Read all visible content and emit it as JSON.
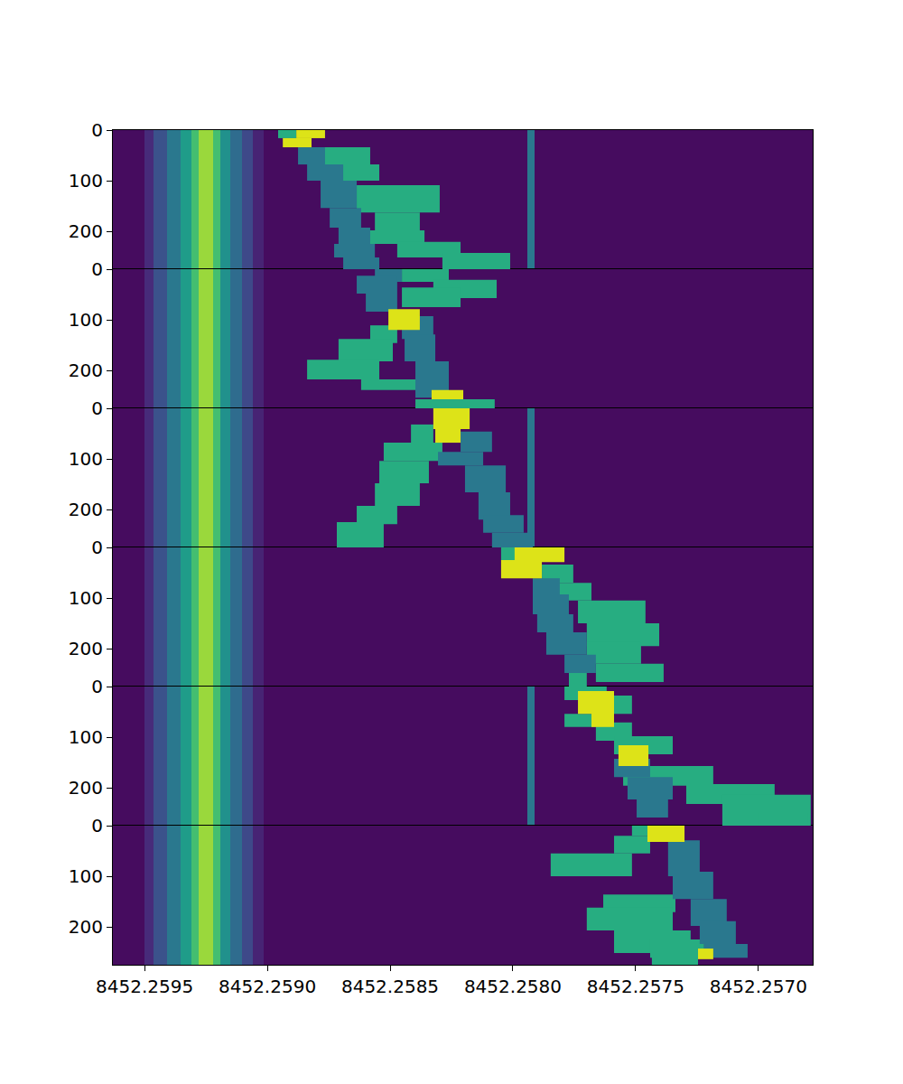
{
  "chart_data": {
    "type": "heatmap",
    "color": "Viridis",
    "colors": [
      "#2a788e",
      "#27ad81",
      "#dde318"
    ],
    "zlim": [
      0,
      1
    ],
    "xlim": [
      8452.259629,
      8452.256779
    ],
    "xticks": [
      8452.2595,
      {
        "value": 8452.259,
        "label": "8452.2590"
      },
      8452.2585,
      {
        "value": 8452.258,
        "label": "8452.2580"
      },
      8452.2575,
      {
        "value": 8452.257,
        "label": "8452.2570"
      }
    ],
    "ylim": [
      275,
      0
    ],
    "yticks": [
      0,
      100,
      200
    ],
    "panels": [
      {
        "profile": {
          "f": [
            8452.259629,
            8452.2595,
            8452.259463,
            8452.259408,
            8452.259353,
            8452.259309,
            8452.259279,
            8452.259221,
            8452.259191,
            8452.259151,
            8452.259103,
            8452.259059,
            8452.259015,
            8452.257941,
            8452.257912,
            8452.256779
          ],
          "z": [
            0.03,
            0.12,
            0.25,
            0.4,
            0.55,
            0.7,
            0.85,
            0.7,
            0.5,
            0.35,
            0.22,
            0.1,
            0.03,
            0.4,
            0.03
          ]
        },
        "tracks": [
          [
            0,
            16,
            8452.258956,
            8452.258882,
            1
          ],
          [
            0,
            16,
            8452.258882,
            8452.258765,
            2
          ],
          [
            16,
            34,
            8452.258937,
            8452.25882,
            2
          ],
          [
            34,
            68,
            8452.258875,
            8452.258765,
            0
          ],
          [
            34,
            68,
            8452.25882,
            8452.258581,
            1
          ],
          [
            68,
            100,
            8452.258838,
            8452.258691,
            0
          ],
          [
            68,
            100,
            8452.258728,
            8452.258544,
            1
          ],
          [
            100,
            154,
            8452.258783,
            8452.258636,
            0
          ],
          [
            109,
            163,
            8452.258636,
            8452.258298,
            1
          ],
          [
            154,
            193,
            8452.258746,
            8452.258618,
            0
          ],
          [
            163,
            198,
            8452.258562,
            8452.258379,
            1
          ],
          [
            193,
            225,
            8452.25871,
            8452.258581,
            0
          ],
          [
            198,
            225,
            8452.258636,
            8452.25836,
            1
          ],
          [
            225,
            252,
            8452.258728,
            8452.258562,
            0
          ],
          [
            221,
            252,
            8452.258471,
            8452.258213,
            1
          ],
          [
            252,
            275,
            8452.258691,
            8452.258544,
            0
          ],
          [
            243,
            275,
            8452.258287,
            8452.258011,
            1
          ]
        ]
      },
      {
        "profile": {
          "f": [
            8452.259629,
            8452.2595,
            8452.259463,
            8452.259408,
            8452.259353,
            8452.259309,
            8452.259279,
            8452.259221,
            8452.259191,
            8452.259151,
            8452.259103,
            8452.259059,
            8452.259015,
            8452.256779
          ],
          "z": [
            0.03,
            0.12,
            0.25,
            0.4,
            0.55,
            0.7,
            0.85,
            0.7,
            0.5,
            0.35,
            0.22,
            0.1,
            0.03
          ]
        },
        "tracks": [
          [
            0,
            25,
            8452.258562,
            8452.258452,
            0
          ],
          [
            0,
            25,
            8452.258452,
            8452.258261,
            1
          ],
          [
            13,
            48,
            8452.258636,
            8452.258471,
            0
          ],
          [
            21,
            57,
            8452.258324,
            8452.258066,
            1
          ],
          [
            48,
            84,
            8452.258599,
            8452.258471,
            0
          ],
          [
            36,
            75,
            8452.258452,
            8452.258213,
            1
          ],
          [
            79,
            120,
            8452.258507,
            8452.258379,
            2
          ],
          [
            93,
            138,
            8452.258452,
            8452.258324,
            0
          ],
          [
            111,
            146,
            8452.258581,
            8452.258471,
            1
          ],
          [
            138,
            182,
            8452.25871,
            8452.258489,
            1
          ],
          [
            129,
            182,
            8452.258441,
            8452.258316,
            0
          ],
          [
            179,
            218,
            8452.258838,
            8452.258544,
            1
          ],
          [
            182,
            227,
            8452.258397,
            8452.258261,
            0
          ],
          [
            218,
            239,
            8452.258618,
            8452.258324,
            1
          ],
          [
            227,
            254,
            8452.258397,
            8452.258261,
            0
          ],
          [
            239,
            257,
            8452.258331,
            8452.258202,
            2
          ],
          [
            257,
            275,
            8452.258397,
            8452.258074,
            1
          ]
        ]
      },
      {
        "profile": {
          "f": [
            8452.259629,
            8452.2595,
            8452.259463,
            8452.259408,
            8452.259353,
            8452.259309,
            8452.259279,
            8452.259221,
            8452.259191,
            8452.259151,
            8452.259103,
            8452.259059,
            8452.259015,
            8452.257941,
            8452.257912,
            8452.256779
          ],
          "z": [
            0.03,
            0.12,
            0.25,
            0.4,
            0.55,
            0.7,
            0.85,
            0.7,
            0.5,
            0.35,
            0.22,
            0.1,
            0.03,
            0.4,
            0.03
          ]
        },
        "tracks": [
          [
            0,
            41,
            8452.258324,
            8452.258176,
            2
          ],
          [
            41,
            68,
            8452.258316,
            8452.258213,
            2
          ],
          [
            32,
            86,
            8452.258415,
            8452.258324,
            1
          ],
          [
            46,
            86,
            8452.258213,
            8452.258085,
            0
          ],
          [
            68,
            104,
            8452.258526,
            8452.258287,
            1
          ],
          [
            86,
            113,
            8452.258305,
            8452.258121,
            0
          ],
          [
            104,
            148,
            8452.258544,
            8452.258342,
            1
          ],
          [
            113,
            166,
            8452.258195,
            8452.258029,
            0
          ],
          [
            148,
            193,
            8452.258562,
            8452.258379,
            1
          ],
          [
            166,
            220,
            8452.25814,
            8452.258011,
            0
          ],
          [
            193,
            229,
            8452.258636,
            8452.258471,
            1
          ],
          [
            211,
            246,
            8452.258121,
            8452.257956,
            0
          ],
          [
            225,
            275,
            8452.258717,
            8452.258526,
            1
          ],
          [
            246,
            275,
            8452.258085,
            8452.257919,
            0
          ]
        ]
      },
      {
        "profile": {
          "f": [
            8452.259629,
            8452.2595,
            8452.259463,
            8452.259408,
            8452.259353,
            8452.259309,
            8452.259279,
            8452.259221,
            8452.259191,
            8452.259151,
            8452.259103,
            8452.259059,
            8452.259015,
            8452.256779
          ],
          "z": [
            0.03,
            0.12,
            0.25,
            0.4,
            0.55,
            0.7,
            0.85,
            0.7,
            0.5,
            0.35,
            0.22,
            0.1,
            0.03
          ]
        },
        "tracks": [
          [
            0,
            25,
            8452.258048,
            8452.257864,
            1
          ],
          [
            0,
            29,
            8452.257993,
            8452.25779,
            2
          ],
          [
            25,
            61,
            8452.258048,
            8452.257882,
            2
          ],
          [
            34,
            70,
            8452.257882,
            8452.257754,
            1
          ],
          [
            61,
            96,
            8452.257919,
            8452.257809,
            0
          ],
          [
            70,
            105,
            8452.257846,
            8452.25768,
            1
          ],
          [
            93,
            132,
            8452.257919,
            8452.257772,
            0
          ],
          [
            105,
            150,
            8452.257735,
            8452.25746,
            1
          ],
          [
            132,
            168,
            8452.257901,
            8452.257754,
            0
          ],
          [
            150,
            195,
            8452.257699,
            8452.257404,
            1
          ],
          [
            168,
            212,
            8452.257864,
            8452.257699,
            0
          ],
          [
            186,
            230,
            8452.257699,
            8452.257478,
            1
          ],
          [
            212,
            248,
            8452.25779,
            8452.257662,
            0
          ],
          [
            230,
            266,
            8452.257662,
            8452.257386,
            1
          ],
          [
            248,
            275,
            8452.257772,
            8452.257699,
            1
          ]
        ]
      },
      {
        "profile": {
          "f": [
            8452.259629,
            8452.2595,
            8452.259463,
            8452.259408,
            8452.259353,
            8452.259309,
            8452.259279,
            8452.259221,
            8452.259191,
            8452.259151,
            8452.259103,
            8452.259059,
            8452.259015,
            8452.257941,
            8452.257912,
            8452.256779
          ],
          "z": [
            0.03,
            0.12,
            0.25,
            0.4,
            0.55,
            0.7,
            0.85,
            0.7,
            0.5,
            0.35,
            0.22,
            0.1,
            0.03,
            0.4,
            0.03
          ]
        },
        "tracks": [
          [
            0,
            27,
            8452.25779,
            8452.257618,
            1
          ],
          [
            9,
            54,
            8452.257735,
            8452.257588,
            2
          ],
          [
            18,
            54,
            8452.257643,
            8452.257515,
            1
          ],
          [
            54,
            80,
            8452.25779,
            8452.257662,
            1
          ],
          [
            50,
            80,
            8452.25768,
            8452.257588,
            2
          ],
          [
            71,
            107,
            8452.257662,
            8452.257515,
            1
          ],
          [
            98,
            134,
            8452.257588,
            8452.257349,
            1
          ],
          [
            116,
            157,
            8452.25757,
            8452.257448,
            2
          ],
          [
            143,
            179,
            8452.257588,
            8452.257441,
            0
          ],
          [
            157,
            196,
            8452.257551,
            8452.257184,
            1
          ],
          [
            179,
            223,
            8452.257533,
            8452.257349,
            0
          ],
          [
            193,
            232,
            8452.257294,
            8452.256934,
            1
          ],
          [
            223,
            259,
            8452.257496,
            8452.257368,
            0
          ],
          [
            214,
            275,
            8452.257147,
            8452.256787,
            1
          ],
          [
            250,
            275,
            8452.257,
            8452.256798,
            1
          ]
        ]
      },
      {
        "profile": {
          "f": [
            8452.259629,
            8452.2595,
            8452.259463,
            8452.259408,
            8452.259353,
            8452.259309,
            8452.259279,
            8452.259221,
            8452.259191,
            8452.259151,
            8452.259103,
            8452.259059,
            8452.259015,
            8452.256779
          ],
          "z": [
            0.03,
            0.12,
            0.25,
            0.4,
            0.55,
            0.7,
            0.85,
            0.7,
            0.5,
            0.35,
            0.22,
            0.1,
            0.03
          ]
        },
        "tracks": [
          [
            0,
            20,
            8452.257515,
            8452.257368,
            1
          ],
          [
            0,
            32,
            8452.257452,
            8452.257301,
            2
          ],
          [
            20,
            55,
            8452.257588,
            8452.257441,
            1
          ],
          [
            29,
            100,
            8452.257368,
            8452.257239,
            0
          ],
          [
            55,
            100,
            8452.257846,
            8452.257515,
            1
          ],
          [
            91,
            145,
            8452.257349,
            8452.257184,
            0
          ],
          [
            136,
            171,
            8452.257632,
            8452.257338,
            1
          ],
          [
            145,
            198,
            8452.257276,
            8452.257129,
            0
          ],
          [
            162,
            207,
            8452.257699,
            8452.257349,
            1
          ],
          [
            189,
            234,
            8452.257239,
            8452.257092,
            0
          ],
          [
            207,
            252,
            8452.257588,
            8452.257276,
            1
          ],
          [
            234,
            261,
            8452.257221,
            8452.257044,
            0
          ],
          [
            225,
            261,
            8452.257441,
            8452.257221,
            1
          ],
          [
            252,
            275,
            8452.257434,
            8452.257246,
            1
          ],
          [
            243,
            264,
            8452.257246,
            8452.257184,
            2
          ]
        ]
      }
    ]
  }
}
